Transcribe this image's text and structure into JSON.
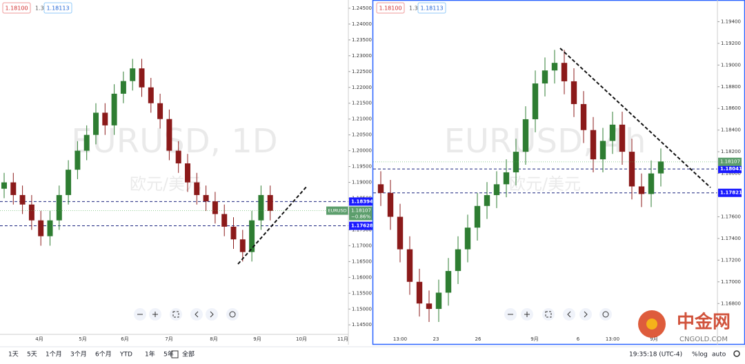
{
  "left_chart": {
    "header": {
      "bid": "1.18100",
      "spread": "1.3",
      "ask": "1.18113"
    },
    "watermark": "EURUSD, 1D",
    "subtitle": "欧元/美元",
    "ylim": [
      1.142,
      1.2476
    ],
    "yticks": [
      {
        "value": 1.245,
        "label": "1.24500"
      },
      {
        "value": 1.24,
        "label": "1.24000"
      },
      {
        "value": 1.235,
        "label": "1.23500"
      },
      {
        "value": 1.23,
        "label": "1.23000"
      },
      {
        "value": 1.225,
        "label": "1.22500"
      },
      {
        "value": 1.22,
        "label": "1.22000"
      },
      {
        "value": 1.215,
        "label": "1.21500"
      },
      {
        "value": 1.21,
        "label": "1.21000"
      },
      {
        "value": 1.205,
        "label": "1.20500"
      },
      {
        "value": 1.2,
        "label": "1.20000"
      },
      {
        "value": 1.195,
        "label": "1.19500"
      },
      {
        "value": 1.19,
        "label": "1.19000"
      },
      {
        "value": 1.185,
        "label": "1.18500"
      },
      {
        "value": 1.18,
        "label": "1.18000"
      },
      {
        "value": 1.175,
        "label": "1.17500"
      },
      {
        "value": 1.17,
        "label": "1.17000"
      },
      {
        "value": 1.165,
        "label": "1.16500"
      },
      {
        "value": 1.16,
        "label": "1.16000"
      },
      {
        "value": 1.155,
        "label": "1.15500"
      },
      {
        "value": 1.15,
        "label": "1.15000"
      },
      {
        "value": 1.145,
        "label": "1.14500"
      }
    ],
    "categories": [
      "4月",
      "5月",
      "6月",
      "7月",
      "8月",
      "9月",
      "10月",
      "11月"
    ],
    "candles": {
      "open": [
        1.188,
        1.19,
        1.186,
        1.183,
        1.178,
        1.173,
        1.178,
        1.186,
        1.194,
        1.2,
        1.205,
        1.212,
        1.208,
        1.218,
        1.222,
        1.226,
        1.22,
        1.215,
        1.21,
        1.2,
        1.196,
        1.19,
        1.186,
        1.184,
        1.18,
        1.176,
        1.172,
        1.168,
        1.178,
        1.186
      ],
      "high": [
        1.193,
        1.193,
        1.189,
        1.186,
        1.181,
        1.181,
        1.189,
        1.197,
        1.203,
        1.208,
        1.215,
        1.215,
        1.221,
        1.225,
        1.229,
        1.229,
        1.223,
        1.218,
        1.213,
        1.203,
        1.199,
        1.193,
        1.189,
        1.187,
        1.183,
        1.179,
        1.175,
        1.181,
        1.189,
        1.189
      ],
      "low": [
        1.185,
        1.183,
        1.18,
        1.175,
        1.17,
        1.17,
        1.175,
        1.183,
        1.191,
        1.197,
        1.202,
        1.205,
        1.205,
        1.215,
        1.219,
        1.217,
        1.212,
        1.207,
        1.197,
        1.193,
        1.187,
        1.183,
        1.181,
        1.177,
        1.173,
        1.169,
        1.165,
        1.165,
        1.175,
        1.178
      ],
      "close": [
        1.19,
        1.186,
        1.183,
        1.178,
        1.173,
        1.178,
        1.186,
        1.194,
        1.2,
        1.205,
        1.212,
        1.208,
        1.218,
        1.222,
        1.226,
        1.22,
        1.215,
        1.21,
        1.2,
        1.196,
        1.19,
        1.186,
        1.184,
        1.18,
        1.176,
        1.172,
        1.168,
        1.178,
        1.186,
        1.181
      ]
    },
    "levels": [
      {
        "value": 1.18394,
        "label": "1.18394"
      },
      {
        "value": 1.17628,
        "label": "1.17628"
      }
    ],
    "last": {
      "symbol": "EURUSD",
      "value": 1.18107,
      "label": "1.18107",
      "change": "−0.86%"
    }
  },
  "right_chart": {
    "header": {
      "bid": "1.18100",
      "spread": "1.3",
      "ask": "1.18113"
    },
    "watermark": "EURUSD, 4h",
    "subtitle": "欧元/美元",
    "ylim": [
      1.1642,
      1.196
    ],
    "yticks": [
      {
        "value": 1.194,
        "label": "1.19400"
      },
      {
        "value": 1.192,
        "label": "1.19200"
      },
      {
        "value": 1.19,
        "label": "1.19000"
      },
      {
        "value": 1.188,
        "label": "1.18800"
      },
      {
        "value": 1.186,
        "label": "1.18600"
      },
      {
        "value": 1.184,
        "label": "1.18400"
      },
      {
        "value": 1.182,
        "label": "1.18200"
      },
      {
        "value": 1.18,
        "label": "1.18000"
      },
      {
        "value": 1.178,
        "label": "1.17800"
      },
      {
        "value": 1.176,
        "label": "1.17600"
      },
      {
        "value": 1.174,
        "label": "1.17400"
      },
      {
        "value": 1.172,
        "label": "1.17200"
      },
      {
        "value": 1.17,
        "label": "1.17000"
      },
      {
        "value": 1.168,
        "label": "1.16800"
      }
    ],
    "categories": [
      "13:00",
      "23",
      "26",
      "9月",
      "6",
      "13:00",
      "9月"
    ],
    "candles": {
      "open": [
        1.179,
        1.1782,
        1.176,
        1.173,
        1.17,
        1.168,
        1.1675,
        1.169,
        1.171,
        1.173,
        1.175,
        1.177,
        1.178,
        1.179,
        1.1801,
        1.182,
        1.185,
        1.1883,
        1.1895,
        1.1902,
        1.1885,
        1.1864,
        1.184,
        1.1813,
        1.183,
        1.1845,
        1.182,
        1.1788,
        1.1781,
        1.18
      ],
      "high": [
        1.1802,
        1.1794,
        1.1772,
        1.1742,
        1.1712,
        1.1692,
        1.1702,
        1.1722,
        1.1742,
        1.1762,
        1.1782,
        1.1792,
        1.1802,
        1.1813,
        1.1832,
        1.1862,
        1.1895,
        1.1907,
        1.1914,
        1.1914,
        1.1897,
        1.1876,
        1.1852,
        1.1842,
        1.1857,
        1.1857,
        1.1832,
        1.18,
        1.1812,
        1.1823
      ],
      "low": [
        1.177,
        1.1748,
        1.1718,
        1.1688,
        1.1668,
        1.1663,
        1.1663,
        1.1678,
        1.1698,
        1.1718,
        1.1738,
        1.1758,
        1.1768,
        1.1778,
        1.1789,
        1.1808,
        1.1838,
        1.1871,
        1.1883,
        1.1873,
        1.1852,
        1.1828,
        1.1801,
        1.1801,
        1.1818,
        1.1808,
        1.1776,
        1.1769,
        1.1769,
        1.1788
      ],
      "close": [
        1.1782,
        1.176,
        1.173,
        1.17,
        1.168,
        1.1675,
        1.169,
        1.171,
        1.173,
        1.175,
        1.177,
        1.178,
        1.179,
        1.1801,
        1.182,
        1.185,
        1.1883,
        1.1895,
        1.1902,
        1.1885,
        1.1864,
        1.184,
        1.1813,
        1.183,
        1.1845,
        1.182,
        1.1788,
        1.1781,
        1.18,
        1.1811
      ]
    },
    "levels": [
      {
        "value": 1.18041,
        "label": "1.18041"
      },
      {
        "value": 1.17821,
        "label": "1.17821"
      }
    ],
    "last": {
      "value": 1.18107,
      "label": "1.18107"
    }
  },
  "toolbar": {
    "ranges": [
      "1天",
      "5天",
      "1个月",
      "3个月",
      "6个月",
      "YTD",
      "1年",
      "5年",
      "全部"
    ],
    "time": "19:35:18 (UTC-4)",
    "percent": "%",
    "log": "log",
    "auto": "auto"
  },
  "logo": {
    "name": "中金网",
    "site": "CNGOLD.COM"
  }
}
